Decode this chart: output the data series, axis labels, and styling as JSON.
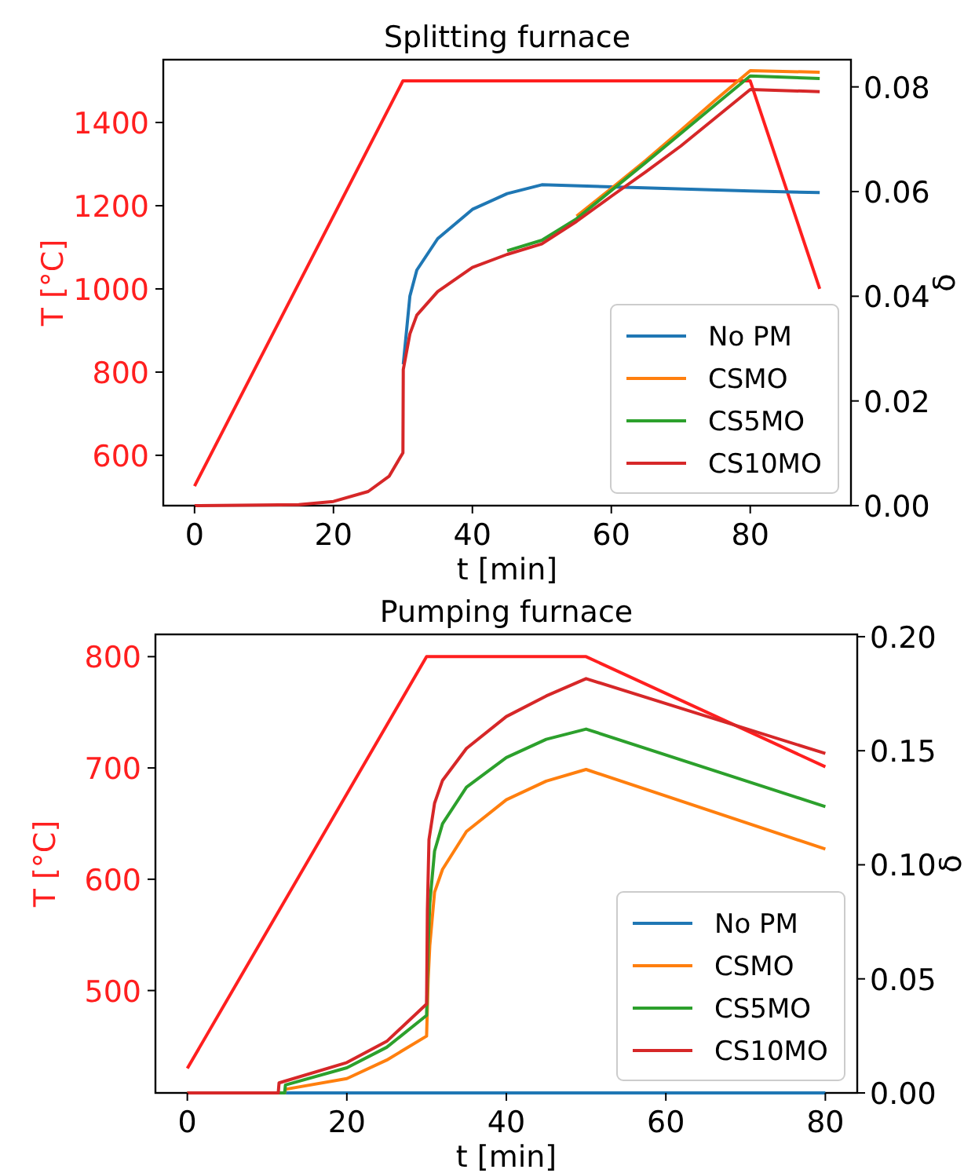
{
  "chart_data": [
    {
      "type": "line",
      "title": "Splitting furnace",
      "xlabel": "t [min]",
      "ylabel": "T [°C]",
      "y2label": "δ",
      "xlim": [
        -4.5,
        94.5
      ],
      "xticks": [
        0,
        20,
        40,
        60,
        80
      ],
      "ylim": [
        479,
        1551
      ],
      "yticks": [
        600,
        800,
        1000,
        1200,
        1400
      ],
      "y2lim": [
        0,
        0.0852
      ],
      "y2ticks": [
        {
          "value": 0,
          "label": "0.00"
        },
        {
          "value": 0.02,
          "label": "0.02"
        },
        {
          "value": 0.04,
          "label": "0.04"
        },
        {
          "value": 0.06,
          "label": "0.06"
        },
        {
          "value": 0.08,
          "label": "0.08"
        }
      ],
      "legend": "bottom right",
      "grid": false,
      "series": [
        {
          "axis": "y",
          "color": "#ff1f1f",
          "x": [
            0,
            30,
            80,
            90
          ],
          "values": [
            526,
            1500,
            1500,
            1000
          ]
        },
        {
          "name": "No PM",
          "axis": "y2",
          "color": "#1f77b4",
          "x": [
            30.05,
            31,
            32,
            35,
            40,
            45,
            50,
            80,
            90
          ],
          "values": [
            0.027,
            0.04,
            0.045,
            0.051,
            0.0566,
            0.0596,
            0.0613,
            0.0601,
            0.0598
          ]
        },
        {
          "name": "CSMO",
          "axis": "y2",
          "color": "#ff7f0e",
          "x": [
            55,
            60,
            65,
            70,
            75,
            80,
            90
          ],
          "values": [
            0.0553,
            0.0606,
            0.066,
            0.0717,
            0.0775,
            0.0831,
            0.0828
          ]
        },
        {
          "name": "CS5MO",
          "axis": "y2",
          "color": "#2ca02c",
          "x": [
            45,
            50,
            55,
            60,
            65,
            70,
            75,
            80,
            90
          ],
          "values": [
            0.0487,
            0.0507,
            0.0548,
            0.0602,
            0.0656,
            0.0711,
            0.0766,
            0.0821,
            0.0816
          ]
        },
        {
          "name": "CS10MO",
          "axis": "y2",
          "color": "#d62728",
          "x": [
            0,
            15,
            20,
            25,
            28,
            30,
            30.05,
            31,
            32,
            35,
            40,
            45,
            50,
            55,
            60,
            65,
            70,
            75,
            80,
            90
          ],
          "values": [
            0,
            0.0002,
            0.0008,
            0.0027,
            0.0056,
            0.0101,
            0.026,
            0.0328,
            0.0364,
            0.0409,
            0.0455,
            0.048,
            0.05,
            0.0543,
            0.0591,
            0.0638,
            0.0687,
            0.0741,
            0.0795,
            0.0791
          ]
        }
      ]
    },
    {
      "type": "line",
      "title": "Pumping furnace",
      "xlabel": "t [min]",
      "ylabel": "T [°C]",
      "y2label": "δ",
      "xlim": [
        -4,
        84
      ],
      "xticks": [
        0,
        20,
        40,
        60,
        80
      ],
      "ylim": [
        408,
        820
      ],
      "yticks": [
        500,
        600,
        700,
        800
      ],
      "y2lim": [
        0,
        0.201
      ],
      "y2ticks": [
        {
          "value": 0,
          "label": "0.00"
        },
        {
          "value": 0.05,
          "label": "0.05"
        },
        {
          "value": 0.1,
          "label": "0.10"
        },
        {
          "value": 0.15,
          "label": "0.15"
        },
        {
          "value": 0.2,
          "label": "0.20"
        }
      ],
      "legend": "bottom right",
      "grid": false,
      "series": [
        {
          "axis": "y",
          "color": "#ff1f1f",
          "x": [
            0,
            30,
            50,
            80
          ],
          "values": [
            430,
            800,
            800,
            701
          ]
        },
        {
          "name": "No PM",
          "axis": "y2",
          "color": "#1f77b4",
          "x": [
            12,
            80
          ],
          "values": [
            0,
            0
          ]
        },
        {
          "name": "CSMO",
          "axis": "y2",
          "color": "#ff7f0e",
          "x": [
            0,
            12.2,
            12.3,
            20,
            25,
            30,
            30.2,
            30.4,
            31,
            32,
            35,
            40,
            45,
            50,
            80
          ],
          "values": [
            0,
            0,
            0.0016,
            0.0063,
            0.0144,
            0.0249,
            0.05,
            0.0645,
            0.088,
            0.098,
            0.1146,
            0.1285,
            0.1367,
            0.1418,
            0.1069
          ]
        },
        {
          "name": "CS5MO",
          "axis": "y2",
          "color": "#2ca02c",
          "x": [
            0,
            12.2,
            12.3,
            20,
            25,
            30,
            30.2,
            30.4,
            31,
            32,
            35,
            40,
            45,
            50,
            80
          ],
          "values": [
            0,
            0,
            0.0035,
            0.011,
            0.02,
            0.034,
            0.065,
            0.083,
            0.106,
            0.118,
            0.134,
            0.147,
            0.155,
            0.1595,
            0.1255
          ]
        },
        {
          "name": "CS10MO",
          "axis": "y2",
          "color": "#d62728",
          "x": [
            0,
            11.4,
            11.5,
            20,
            25,
            30,
            30.1,
            30.3,
            31,
            32,
            35,
            40,
            45,
            50,
            80
          ],
          "values": [
            0,
            0,
            0.0044,
            0.0133,
            0.0226,
            0.039,
            0.08,
            0.111,
            0.127,
            0.137,
            0.151,
            0.165,
            0.174,
            0.1816,
            0.1488
          ]
        }
      ]
    }
  ]
}
